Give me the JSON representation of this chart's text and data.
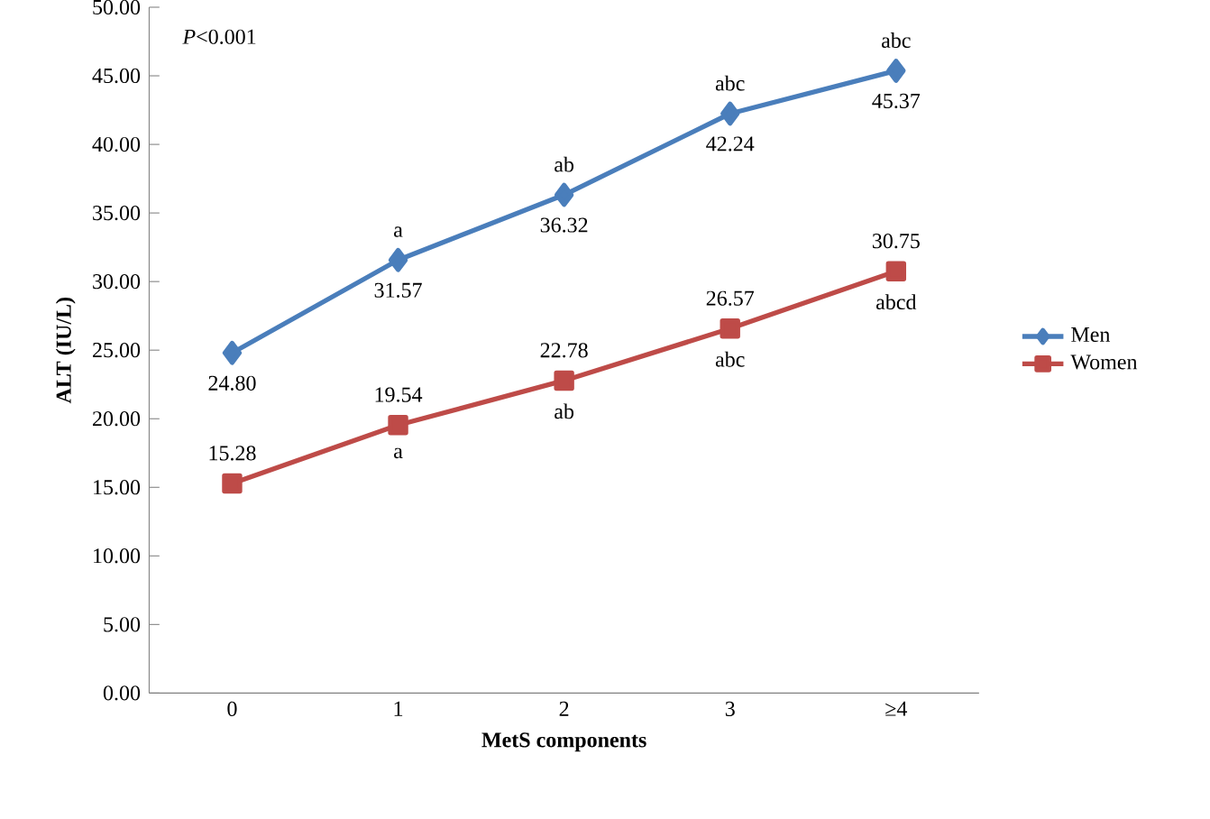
{
  "chart_data": {
    "type": "line",
    "categories": [
      "0",
      "1",
      "2",
      "3",
      "≥4"
    ],
    "series": [
      {
        "name": "Men",
        "color": "#4a7ebb",
        "marker": "diamond",
        "values": [
          24.8,
          31.57,
          36.32,
          42.24,
          45.37
        ],
        "value_labels": [
          "24.80",
          "31.57",
          "36.32",
          "42.24",
          "45.37"
        ]
      },
      {
        "name": "Women",
        "color": "#be4b48",
        "marker": "square",
        "values": [
          15.28,
          19.54,
          22.78,
          26.57,
          30.75
        ],
        "value_labels": [
          "15.28",
          "19.54",
          "22.78",
          "26.57",
          "30.75"
        ]
      }
    ],
    "xlabel": "MetS components",
    "ylabel": "ALT (IU/L)",
    "ylim": [
      0,
      50
    ],
    "yticks": [
      {
        "value": 0,
        "label": "0.00"
      },
      {
        "value": 5,
        "label": "5.00"
      },
      {
        "value": 10,
        "label": "10.00"
      },
      {
        "value": 15,
        "label": "15.00"
      },
      {
        "value": 20,
        "label": "20.00"
      },
      {
        "value": 25,
        "label": "25.00"
      },
      {
        "value": 30,
        "label": "30.00"
      },
      {
        "value": 35,
        "label": "35.00"
      },
      {
        "value": 40,
        "label": "40.00"
      },
      {
        "value": 45,
        "label": "45.00"
      },
      {
        "value": 50,
        "label": "50.00"
      }
    ],
    "legend": "right",
    "annotations": [
      "*P*<0.001",
      {
        "text": "a",
        "x": "1",
        "y": 31.57
      },
      {
        "text": "ab",
        "x": "2",
        "y": 36.32
      },
      {
        "text": "abc",
        "x": "3",
        "y": 42.24
      },
      {
        "text": "abc",
        "x": "≥4",
        "y": 45.37
      },
      {
        "text": "a",
        "x": "1",
        "y": 19.54
      },
      {
        "text": "ab",
        "x": "2",
        "y": 22.78
      },
      {
        "text": "abc",
        "x": "3",
        "y": 26.57
      },
      {
        "text": "abcd",
        "x": "≥4",
        "y": 30.75
      }
    ]
  }
}
